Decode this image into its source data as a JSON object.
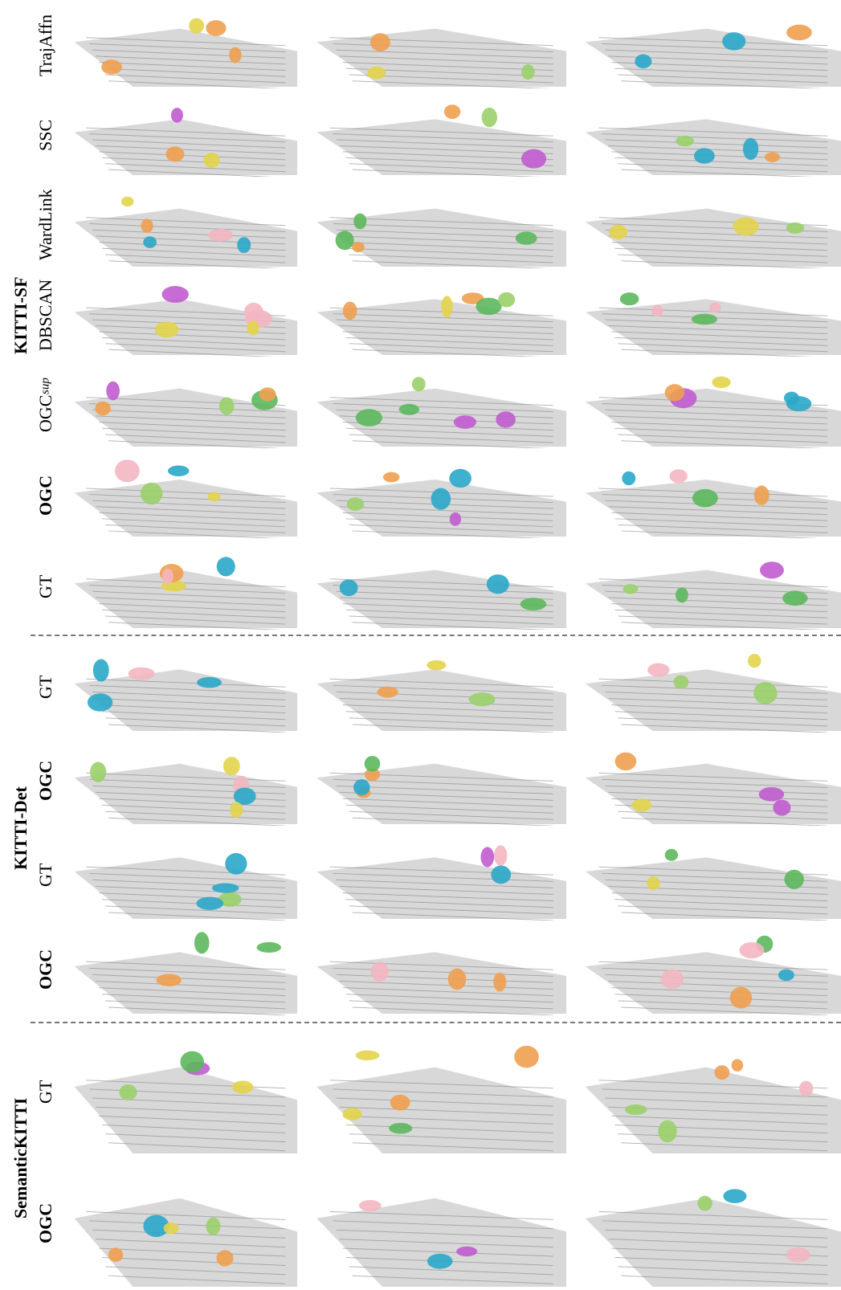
{
  "groups": [
    {
      "label": "KITTI-SF",
      "rows": [
        {
          "label": "TrajAffn"
        },
        {
          "label": "SSC"
        },
        {
          "label": "WardLink"
        },
        {
          "label": "DBSCAN"
        },
        {
          "label": "OGC",
          "subscript": "sup"
        },
        {
          "label": "OGC",
          "bold": true
        },
        {
          "label": "GT"
        }
      ]
    },
    {
      "label": "KITTI-Det",
      "rows": [
        {
          "label": "GT"
        },
        {
          "label": "OGC",
          "bold": true
        },
        {
          "label": "GT"
        },
        {
          "label": "OGC",
          "bold": true
        }
      ]
    },
    {
      "label": "SemanticKITTI",
      "rows": [
        {
          "label": "GT"
        },
        {
          "label": "OGC",
          "bold": true
        }
      ]
    }
  ]
}
